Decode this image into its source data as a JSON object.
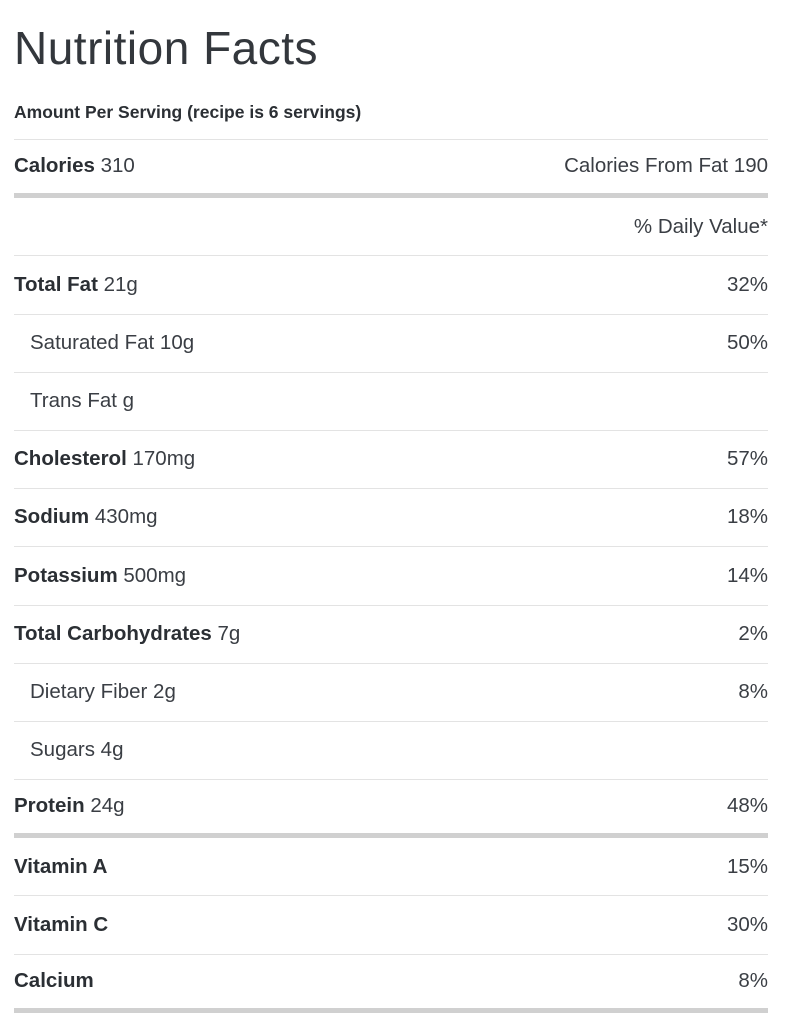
{
  "title": "Nutrition Facts",
  "serving_note": "Amount Per Serving (recipe is 6 servings)",
  "calories": {
    "name": "Calories",
    "amount": "310",
    "right_label": "Calories From Fat 190"
  },
  "daily_value_header": "% Daily Value*",
  "rows": [
    {
      "name": "Total Fat",
      "amount": "21g",
      "percent": "32%"
    },
    {
      "name": "Saturated Fat",
      "amount": "10g",
      "percent": "50%"
    },
    {
      "name": "Trans Fat",
      "amount": "g",
      "percent": ""
    },
    {
      "name": "Cholesterol",
      "amount": "170mg",
      "percent": "57%"
    },
    {
      "name": "Sodium",
      "amount": "430mg",
      "percent": "18%"
    },
    {
      "name": "Potassium",
      "amount": "500mg",
      "percent": "14%"
    },
    {
      "name": "Total Carbohydrates",
      "amount": "7g",
      "percent": "2%"
    },
    {
      "name": "Dietary Fiber",
      "amount": "2g",
      "percent": "8%"
    },
    {
      "name": "Sugars",
      "amount": "4g",
      "percent": ""
    },
    {
      "name": "Protein",
      "amount": "24g",
      "percent": "48%"
    },
    {
      "name": "Vitamin A",
      "amount": "",
      "percent": "15%"
    },
    {
      "name": "Vitamin C",
      "amount": "",
      "percent": "30%"
    },
    {
      "name": "Calcium",
      "amount": "",
      "percent": "8%"
    }
  ],
  "colors": {
    "background": "#ffffff",
    "text": "#32363b",
    "bold_text": "#2b2f34",
    "thin_divider": "#e3e3e3",
    "thick_divider": "#d0d0d0"
  }
}
